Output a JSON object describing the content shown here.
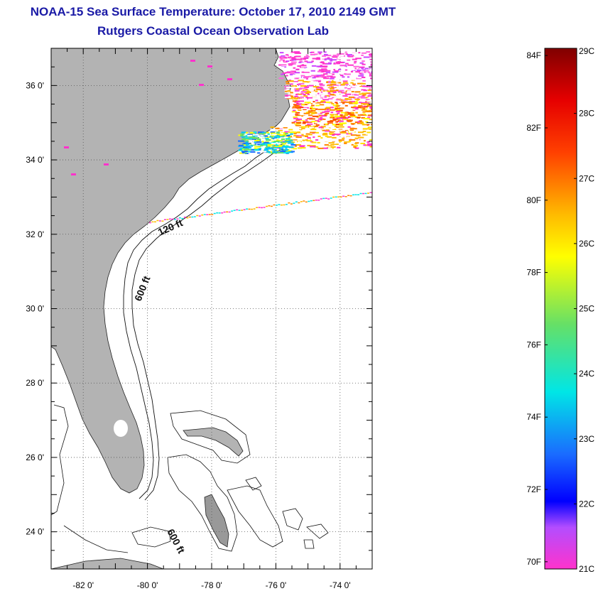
{
  "header": {
    "title": "NOAA-15 Sea Surface Temperature:  October 17, 2010 2149 GMT",
    "subtitle": "Rutgers Coastal Ocean Observation Lab"
  },
  "map": {
    "lon_range": [
      -83,
      -73
    ],
    "lat_range": [
      23,
      37
    ],
    "lon_ticks": [
      {
        "value": -82,
        "label": "-82 0'"
      },
      {
        "value": -80,
        "label": "-80 0'"
      },
      {
        "value": -78,
        "label": "-78 0'"
      },
      {
        "value": -76,
        "label": "-76 0'"
      },
      {
        "value": -74,
        "label": "-74 0'"
      }
    ],
    "lat_ticks": [
      {
        "value": 36,
        "label": "36 0'"
      },
      {
        "value": 34,
        "label": "34 0'"
      },
      {
        "value": 32,
        "label": "32 0'"
      },
      {
        "value": 30,
        "label": "30 0'"
      },
      {
        "value": 28,
        "label": "28 0'"
      },
      {
        "value": 26,
        "label": "26 0'"
      },
      {
        "value": 24,
        "label": "24 0'"
      }
    ],
    "contour_labels": {
      "isobath_120": "120 ft",
      "isobath_600_north": "600 ft",
      "isobath_600_south": "600 ft"
    },
    "colors": {
      "land": "#b3b3b3",
      "water": "#ffffff",
      "grid": "#555555"
    }
  },
  "colorbar": {
    "min_c": 21,
    "max_c": 29,
    "fahrenheit_labels": [
      "84F",
      "82F",
      "80F",
      "78F",
      "76F",
      "74F",
      "72F",
      "70F"
    ],
    "celsius_labels": [
      "29C",
      "28C",
      "27C",
      "26C",
      "25C",
      "24C",
      "23C",
      "22C",
      "21C"
    ]
  }
}
